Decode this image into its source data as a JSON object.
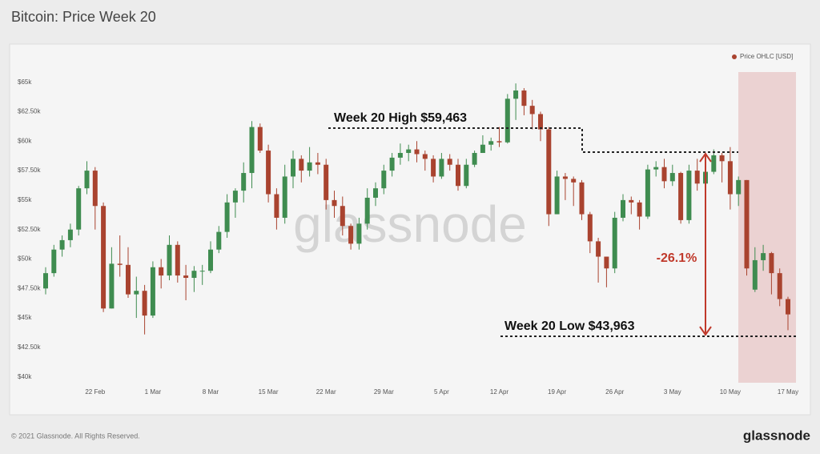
{
  "chart_data": {
    "type": "candlestick",
    "title": "Bitcoin: Price Week 20",
    "legend_label": "Price OHLC [USD]",
    "legend_position": "top-right",
    "up_color": "#3f8c50",
    "down_color": "#a9432f",
    "watermark": "glassnode",
    "annotations": [
      {
        "text": "Week 20 High $59,463"
      },
      {
        "text": "Week 20 Low $43,963"
      },
      {
        "text": "-26.1%"
      }
    ],
    "categories": [
      null,
      null,
      null,
      null,
      null,
      null,
      "22 Feb",
      null,
      null,
      null,
      null,
      null,
      null,
      "1 Mar",
      null,
      null,
      null,
      null,
      null,
      null,
      "8 Mar",
      null,
      null,
      null,
      null,
      null,
      null,
      "15 Mar",
      null,
      null,
      null,
      null,
      null,
      null,
      "22 Mar",
      null,
      null,
      null,
      null,
      null,
      null,
      "29 Mar",
      null,
      null,
      null,
      null,
      null,
      null,
      "5 Apr",
      null,
      null,
      null,
      null,
      null,
      null,
      "12 Apr",
      null,
      null,
      null,
      null,
      null,
      null,
      "19 Apr",
      null,
      null,
      null,
      null,
      null,
      null,
      "26 Apr",
      null,
      null,
      null,
      null,
      null,
      null,
      "3 May",
      null,
      null,
      null,
      null,
      null,
      null,
      "10 May",
      null,
      null,
      null,
      null,
      null,
      null,
      "17 May"
    ],
    "open": [
      47500,
      48800,
      50800,
      51600,
      52500,
      56000,
      57500,
      54500,
      45800,
      49600,
      49500,
      47000,
      47300,
      45200,
      49300,
      48600,
      51200,
      48600,
      48400,
      49000,
      49000,
      50800,
      52300,
      54800,
      55800,
      57300,
      61200,
      59200,
      55500,
      53500,
      57000,
      58500,
      57500,
      58200,
      58000,
      55000,
      54500,
      52800,
      51300,
      53000,
      55200,
      56000,
      57500,
      58600,
      59000,
      59300,
      58900,
      58500,
      57000,
      58500,
      58000,
      56200,
      58000,
      59000,
      59700,
      60000,
      59900,
      63600,
      64300,
      63000,
      62300,
      61000,
      53800,
      57000,
      56800,
      56500,
      53800,
      51500,
      50200,
      49200,
      53500,
      55000,
      54800,
      53600,
      57600,
      57800,
      56600,
      57300,
      53300,
      57500,
      56400,
      57400,
      58800,
      58300,
      55500,
      56700,
      47400,
      49900,
      50500,
      48800,
      46600
    ],
    "high": [
      49300,
      51200,
      52000,
      53000,
      56200,
      58300,
      57800,
      54800,
      51000,
      52000,
      51000,
      48500,
      47800,
      49800,
      50000,
      52000,
      51500,
      49500,
      49400,
      49500,
      51500,
      52800,
      55500,
      56000,
      58200,
      61700,
      61500,
      59700,
      56000,
      58000,
      59200,
      58800,
      59500,
      59000,
      58500,
      55800,
      55300,
      53000,
      53500,
      56000,
      56500,
      58000,
      59000,
      59800,
      59700,
      60000,
      59200,
      58800,
      59000,
      58900,
      58500,
      58500,
      59200,
      60500,
      60300,
      61200,
      64000,
      64900,
      64500,
      63500,
      62500,
      61200,
      57500,
      57300,
      57000,
      56700,
      54000,
      51800,
      50200,
      54000,
      55500,
      55300,
      55000,
      58000,
      58300,
      58500,
      58000,
      57400,
      58000,
      58500,
      58200,
      59300,
      59000,
      59500,
      57000,
      56700,
      51000,
      51200,
      50600,
      49200,
      46800
    ],
    "low": [
      47000,
      48500,
      50200,
      51000,
      52000,
      55500,
      52500,
      45500,
      45800,
      48500,
      46700,
      45000,
      43600,
      45000,
      47500,
      48200,
      48000,
      46500,
      47200,
      47800,
      48800,
      50500,
      51800,
      53500,
      54800,
      56000,
      59000,
      54800,
      52500,
      53000,
      56000,
      56500,
      57000,
      57200,
      54200,
      53500,
      52000,
      50800,
      50800,
      52500,
      54500,
      55500,
      57000,
      58000,
      58300,
      58200,
      57500,
      56500,
      56800,
      57500,
      55800,
      56000,
      57800,
      59000,
      59200,
      59500,
      59800,
      61800,
      62200,
      61000,
      60000,
      52800,
      53800,
      55000,
      54500,
      53300,
      50500,
      48000,
      47600,
      48800,
      53200,
      53800,
      52500,
      53400,
      57000,
      56000,
      56200,
      53000,
      53000,
      55800,
      55500,
      57200,
      56500,
      54200,
      54500,
      48600,
      47200,
      49000,
      47000,
      46000,
      43963
    ],
    "close": [
      48800,
      50800,
      51600,
      52500,
      56000,
      57500,
      54500,
      45800,
      49600,
      49500,
      47000,
      47300,
      45200,
      49300,
      48600,
      51200,
      48600,
      48400,
      49000,
      49000,
      50800,
      52300,
      54800,
      55800,
      57300,
      61200,
      59200,
      55500,
      53500,
      57000,
      58500,
      57500,
      58200,
      58000,
      55000,
      54500,
      52800,
      51300,
      53000,
      55200,
      56000,
      57500,
      58600,
      59000,
      59300,
      58900,
      58500,
      57000,
      58500,
      58000,
      56200,
      58000,
      59000,
      59700,
      60000,
      59900,
      63600,
      64300,
      63000,
      62300,
      61000,
      53800,
      57000,
      56800,
      56500,
      53800,
      51500,
      50200,
      49200,
      53500,
      55000,
      54800,
      53600,
      57600,
      57800,
      56600,
      57300,
      53300,
      57500,
      56400,
      57400,
      58800,
      58300,
      55500,
      56700,
      49200,
      49900,
      50500,
      48800,
      46600,
      45300
    ],
    "ylim": [
      39500,
      66000
    ],
    "yticks": [
      {
        "value": 40000,
        "label": "$40k"
      },
      {
        "value": 42500,
        "label": "$42.50k"
      },
      {
        "value": 45000,
        "label": "$45k"
      },
      {
        "value": 47500,
        "label": "$47.50k"
      },
      {
        "value": 50000,
        "label": "$50k"
      },
      {
        "value": 52500,
        "label": "$52.50k"
      },
      {
        "value": 55000,
        "label": "$55k"
      },
      {
        "value": 57500,
        "label": "$57.50k"
      },
      {
        "value": 60000,
        "label": "$60k"
      },
      {
        "value": 62500,
        "label": "$62.50k"
      },
      {
        "value": 65000,
        "label": "$65k"
      }
    ],
    "grid": false
  },
  "footer": {
    "copyright": "© 2021 Glassnode. All Rights Reserved.",
    "logo": "glassnode"
  }
}
